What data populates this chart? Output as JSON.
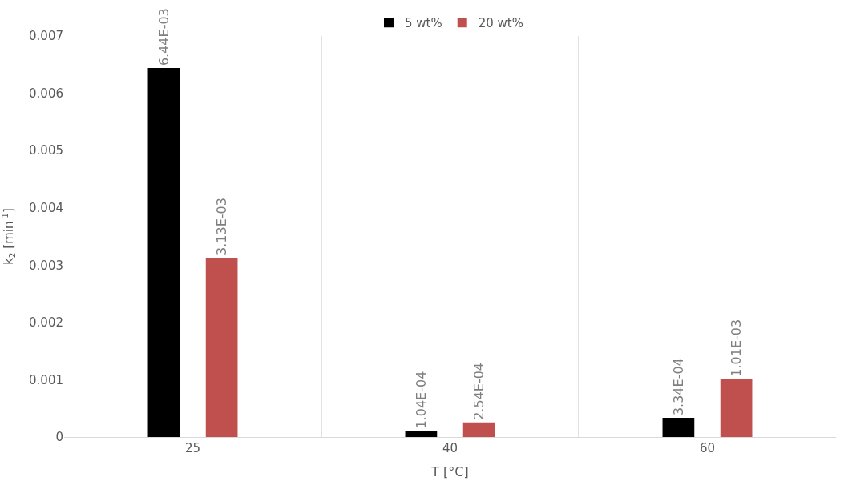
{
  "chart_data": {
    "type": "bar",
    "xlabel": "T [°C]",
    "ylabel": "k$_{2}$ [min$^{-1}$]",
    "categories": [
      "25",
      "40",
      "60"
    ],
    "series": [
      {
        "name": "5 wt%",
        "color": "#000000",
        "values": [
          0.00644,
          0.000104,
          0.000334
        ],
        "value_labels": [
          "6.44E-03",
          "1.04E-04",
          "3.34E-04"
        ]
      },
      {
        "name": "20 wt%",
        "color": "#c0504d",
        "values": [
          0.00313,
          0.000254,
          0.00101
        ],
        "value_labels": [
          "3.13E-03",
          "2.54E-04",
          "1.01E-03"
        ]
      }
    ],
    "ylim": [
      0,
      0.007
    ],
    "yticks": [
      0,
      0.001,
      0.002,
      0.003,
      0.004,
      0.005,
      0.006,
      0.007
    ],
    "grid": "x",
    "legend": "top"
  }
}
